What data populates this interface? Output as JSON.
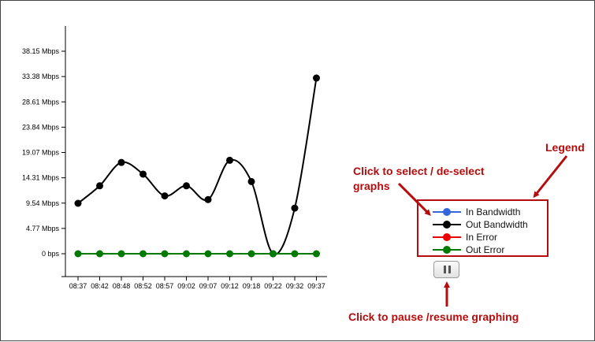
{
  "chart_data": {
    "type": "line",
    "x": [
      "08:37",
      "08:42",
      "08:48",
      "08:52",
      "08:57",
      "09:02",
      "09:07",
      "09:12",
      "09:18",
      "09:22",
      "09:32",
      "09:37"
    ],
    "y_ticks": [
      "0 bps",
      "4.77 Mbps",
      "9.54 Mbps",
      "14.31 Mbps",
      "19.07 Mbps",
      "23.84 Mbps",
      "28.61 Mbps",
      "33.38 Mbps",
      "38.15 Mbps"
    ],
    "ylim": [
      0,
      38.15
    ],
    "y_unit": "Mbps",
    "series": [
      {
        "name": "Out Bandwidth",
        "color": "#000000",
        "values": [
          9.5,
          12.8,
          17.2,
          15.0,
          10.9,
          12.8,
          10.2,
          17.6,
          13.6,
          0.0,
          8.6,
          33.1
        ]
      },
      {
        "name": "Out Error",
        "color": "#007a00",
        "values": [
          0,
          0,
          0,
          0,
          0,
          0,
          0,
          0,
          0,
          0,
          0,
          0
        ]
      }
    ]
  },
  "legend": {
    "items": [
      {
        "label": "In Bandwidth",
        "color": "#3366dd"
      },
      {
        "label": "Out Bandwidth",
        "color": "#000000"
      },
      {
        "label": "In Error",
        "color": "#ee0000"
      },
      {
        "label": "Out Error",
        "color": "#007a00"
      }
    ]
  },
  "annotations": {
    "legend_title": "Legend",
    "select_hint_line1": "Click to select / de-select",
    "select_hint_line2": "graphs",
    "pause_hint": "Click to pause /resume graphing",
    "color": "#b50d0d"
  },
  "controls": {
    "pause_icon": "pause-icon"
  }
}
